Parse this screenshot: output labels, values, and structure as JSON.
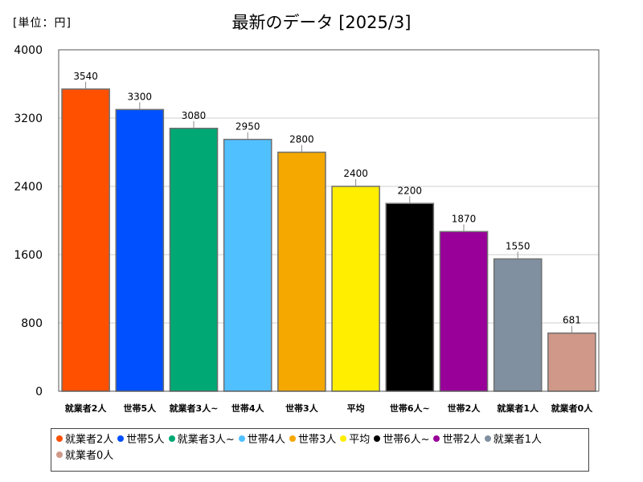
{
  "header": {
    "unit_label": "[単位：円]",
    "title": "最新のデータ [2025/3]"
  },
  "chart_data": {
    "type": "bar",
    "title": "最新のデータ [2025/3]",
    "unit": "[単位：円]",
    "categories": [
      "就業者2人",
      "世帯5人",
      "就業者3人~",
      "世帯4人",
      "世帯3人",
      "平均",
      "世帯6人~",
      "世帯2人",
      "就業者1人",
      "就業者0人"
    ],
    "values": [
      3540,
      3300,
      3080,
      2950,
      2800,
      2400,
      2200,
      1870,
      1550,
      681
    ],
    "colors": [
      "#ff5000",
      "#0050ff",
      "#00a874",
      "#50c0ff",
      "#f4a800",
      "#ffee00",
      "#000000",
      "#990099",
      "#8090a0",
      "#d09888"
    ],
    "ylim": [
      0,
      4000
    ],
    "yticks": [
      0,
      800,
      1600,
      2400,
      3200,
      4000
    ],
    "grid": true,
    "legend_position": "bottom"
  }
}
